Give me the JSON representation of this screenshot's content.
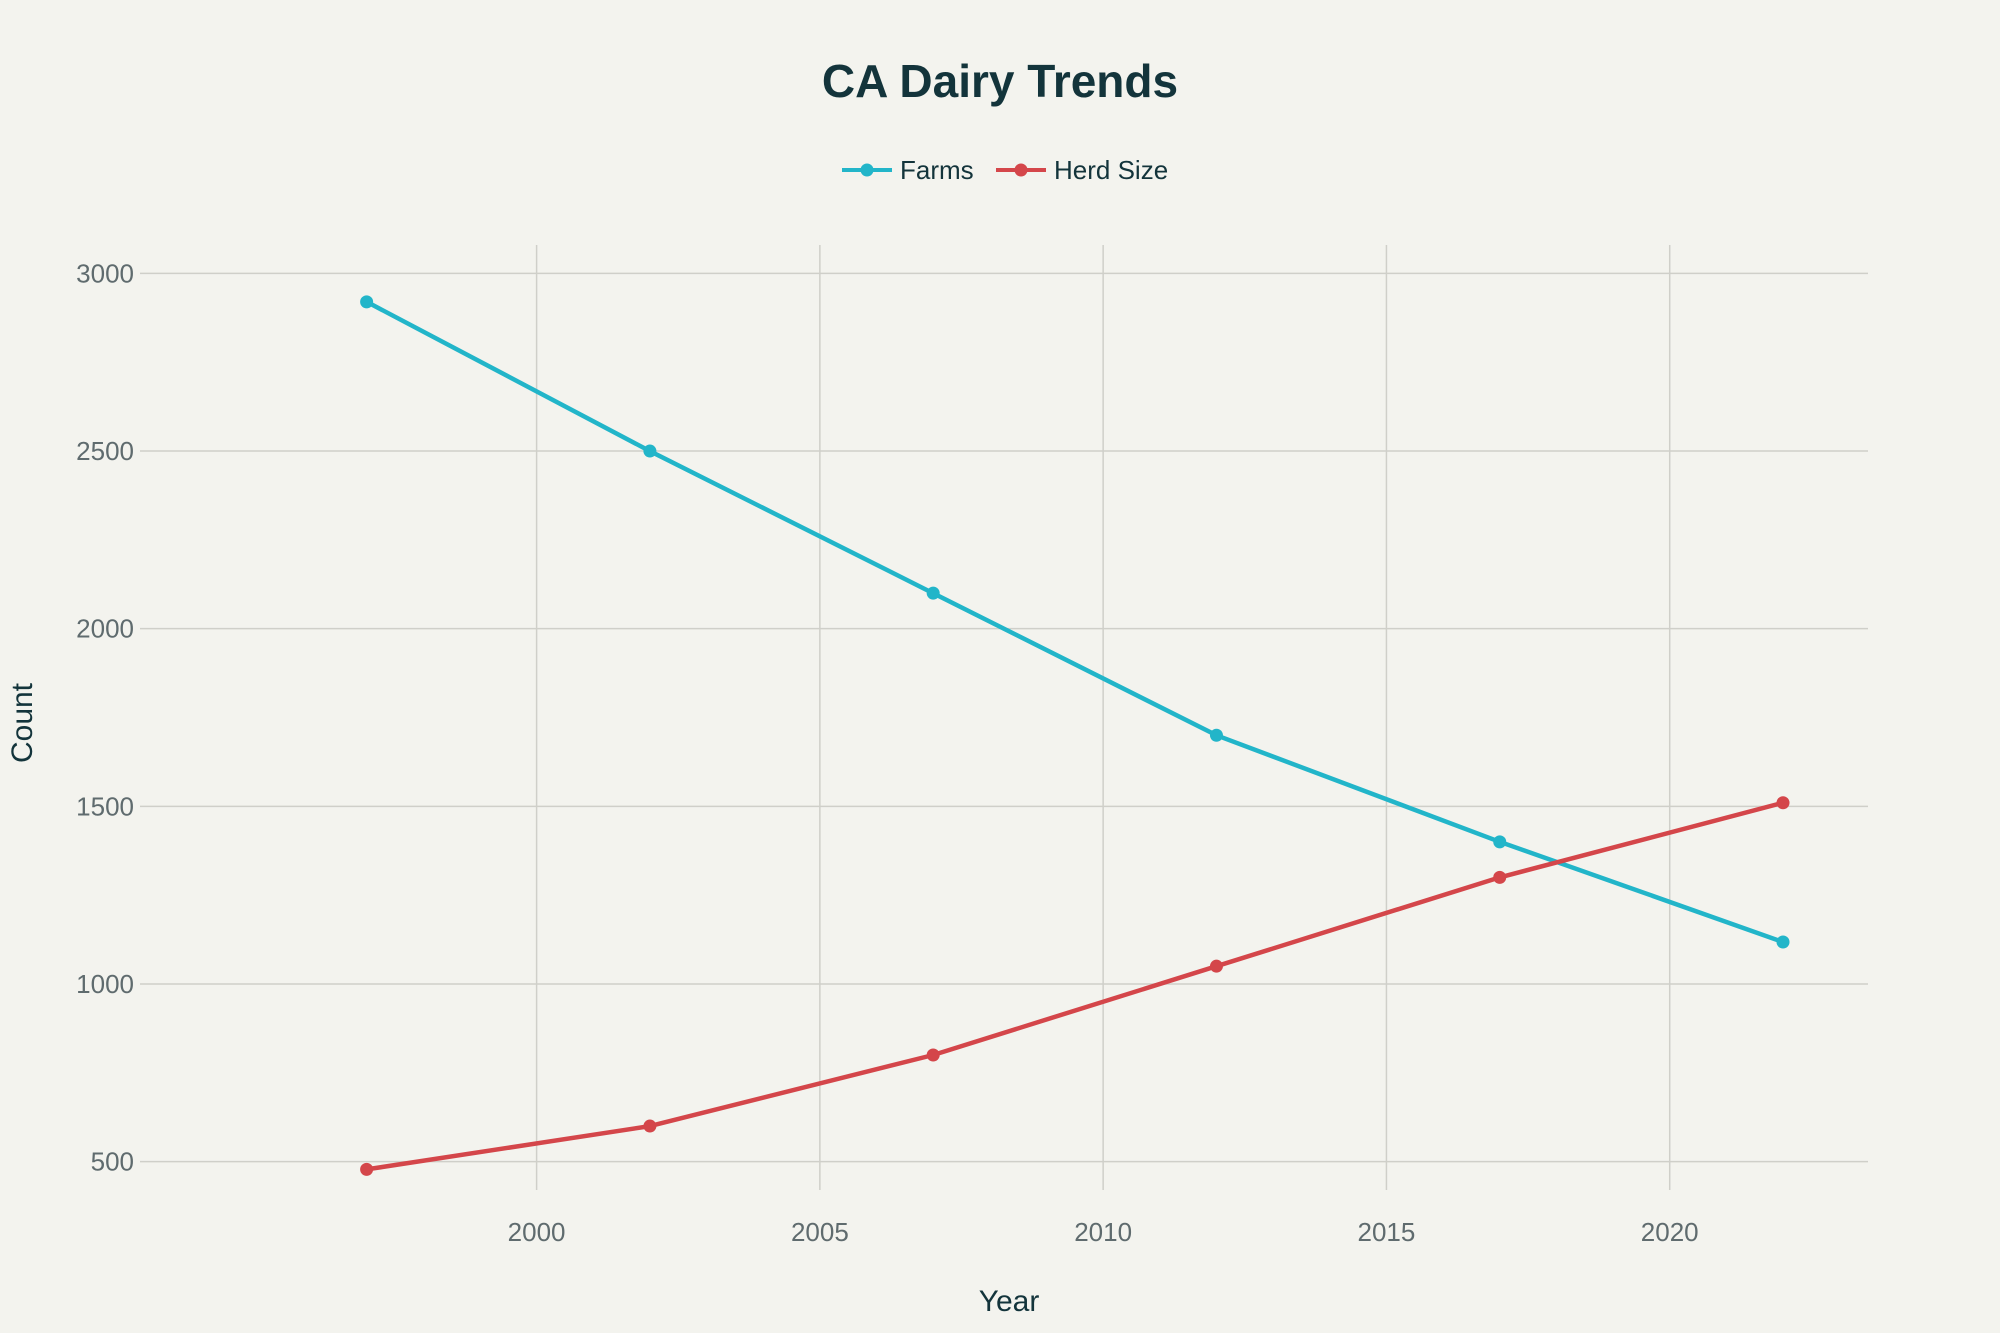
{
  "chart_data": {
    "type": "line",
    "title": "CA Dairy Trends",
    "xlabel": "Year",
    "ylabel": "Count",
    "x": [
      1997,
      2002,
      2007,
      2012,
      2017,
      2022
    ],
    "xlim": [
      1993,
      2023.5
    ],
    "ylim": [
      420,
      3080
    ],
    "xticks": [
      "2000",
      "2005",
      "2010",
      "2015",
      "2020"
    ],
    "yticks": [
      "500",
      "1000",
      "1500",
      "2000",
      "2500",
      "3000"
    ],
    "grid": true,
    "legend": "top-center",
    "series": [
      {
        "name": "Farms",
        "color": "#22b5c9",
        "values": [
          2920,
          2500,
          2100,
          1700,
          1400,
          1118
        ]
      },
      {
        "name": "Herd Size",
        "color": "#d4464a",
        "values": [
          478,
          600,
          800,
          1050,
          1300,
          1510
        ]
      }
    ]
  }
}
